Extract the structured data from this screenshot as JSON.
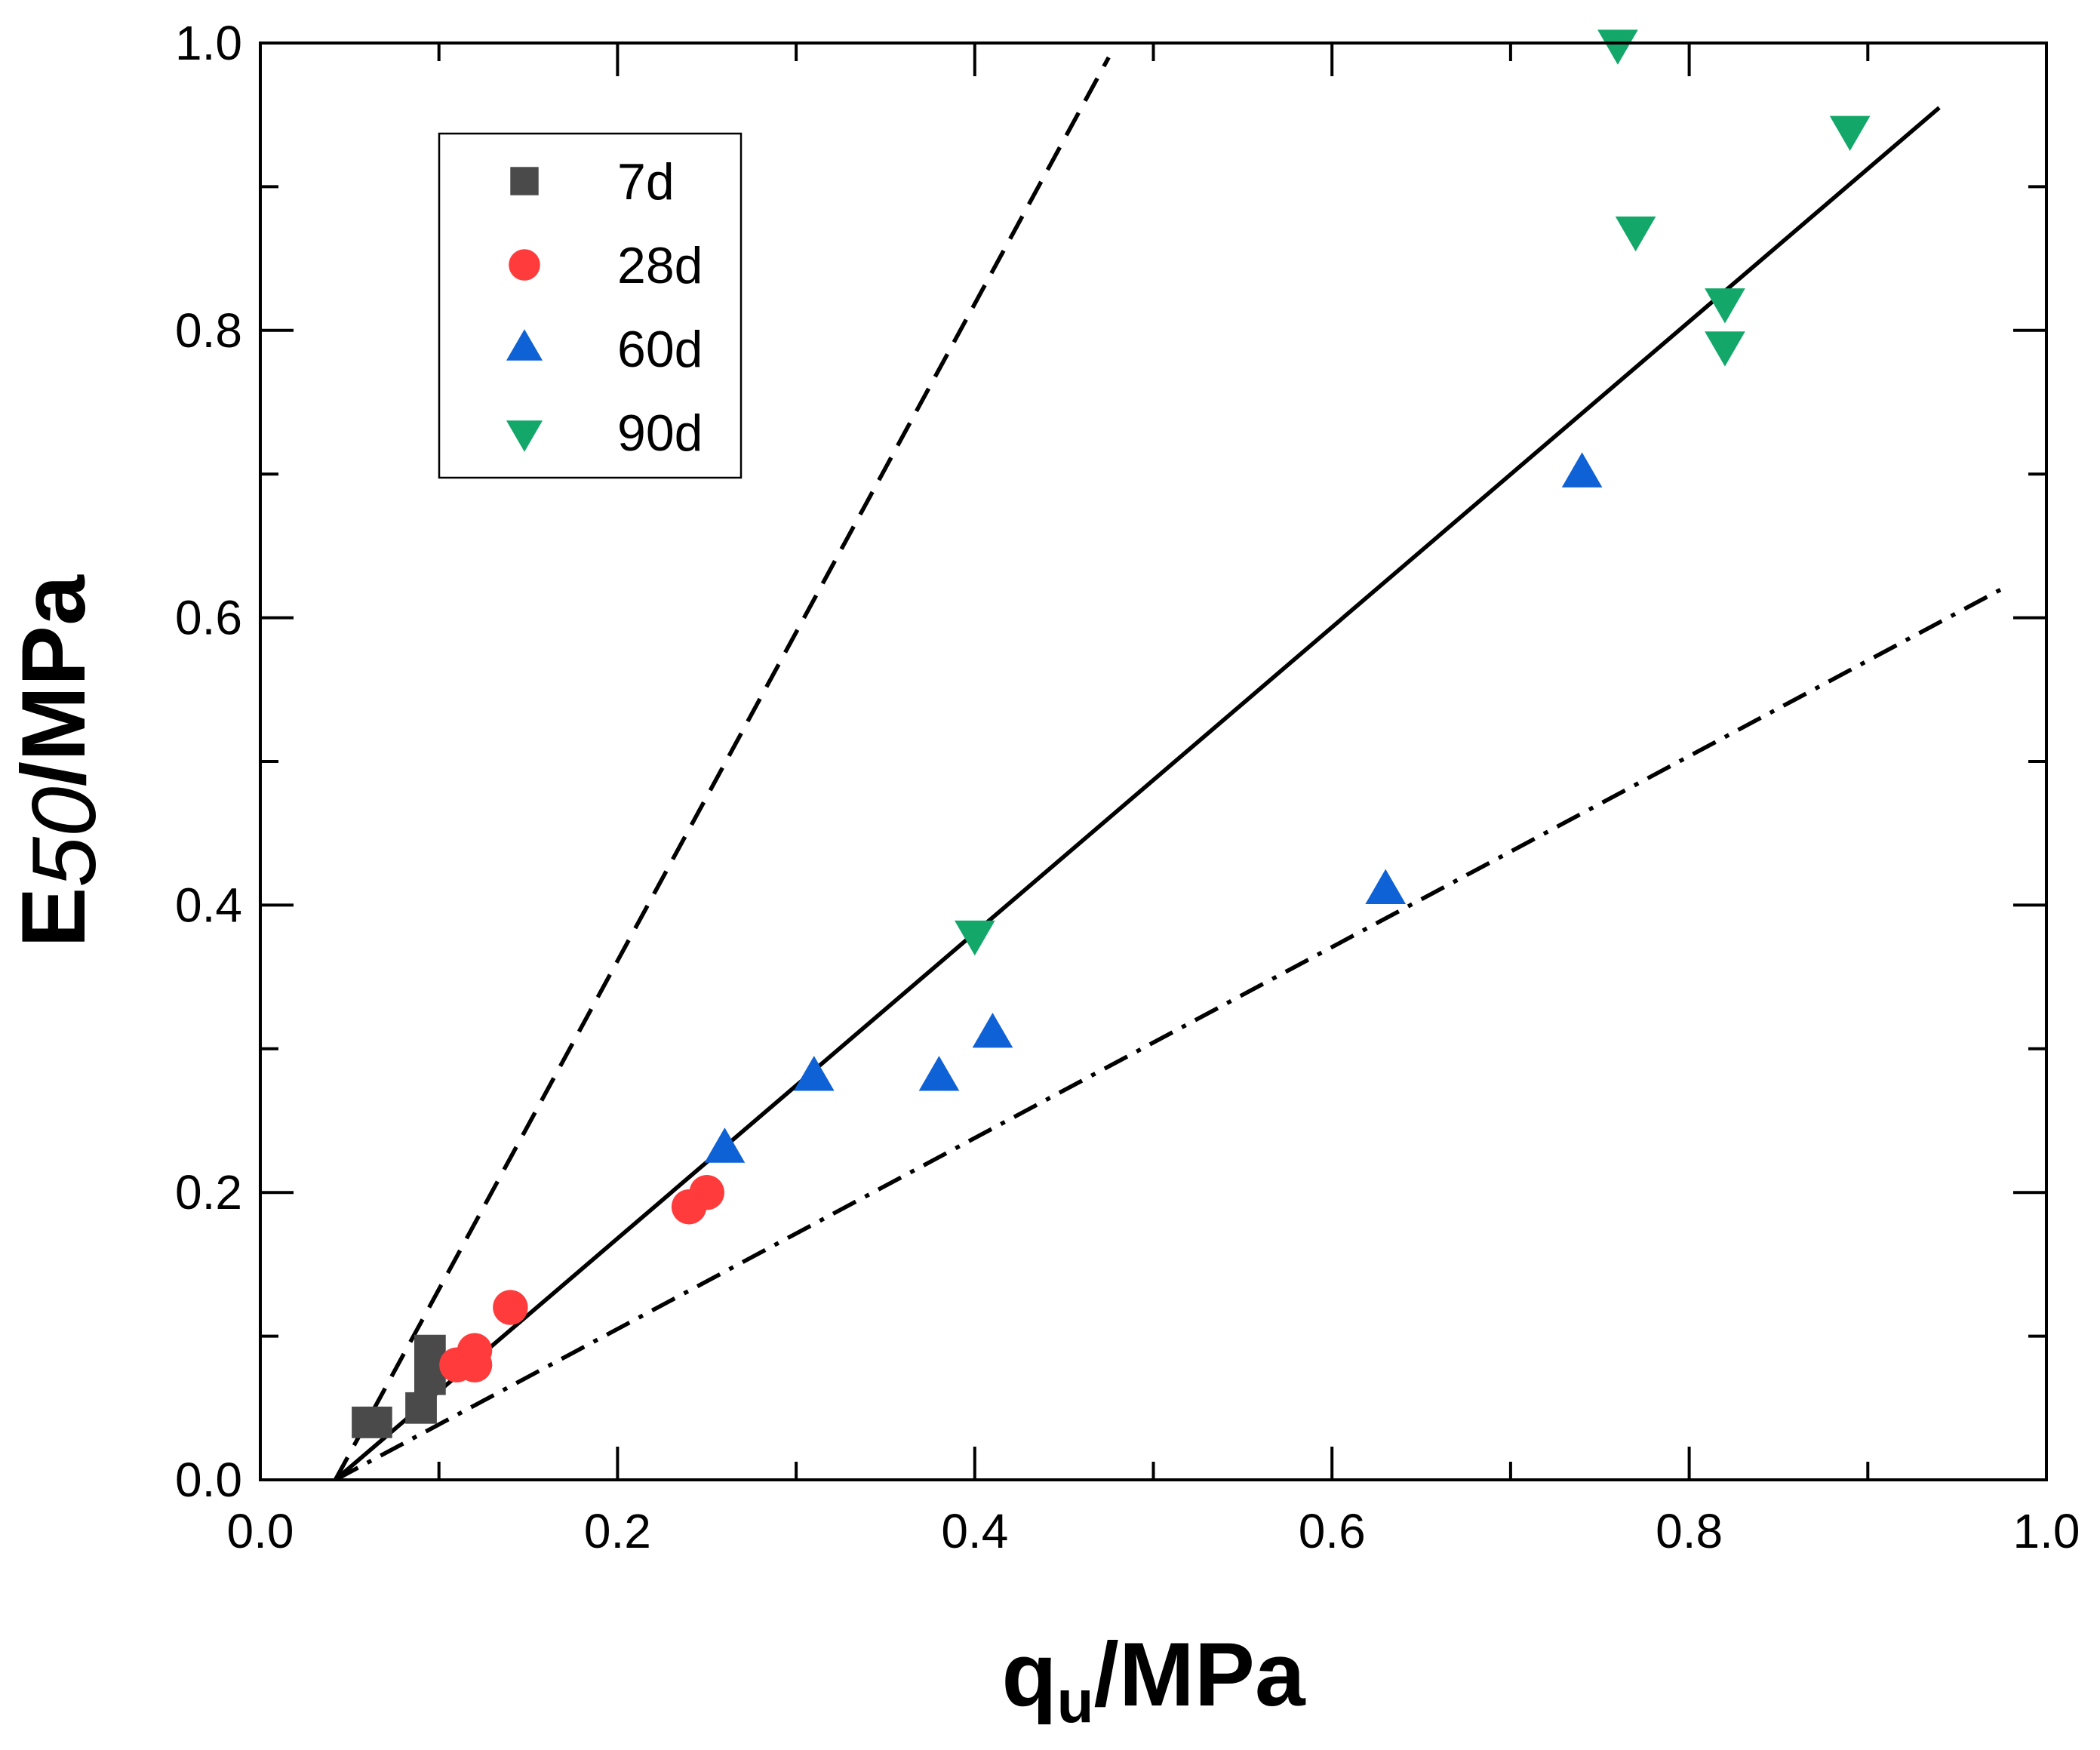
{
  "chart_data": {
    "type": "scatter",
    "title": "",
    "xlabel": {
      "main": "q",
      "sub": "u",
      "unit": "/MPa"
    },
    "ylabel": {
      "main": "E",
      "sub": "50",
      "unit": "/MPa"
    },
    "xlim": [
      0,
      1.0
    ],
    "ylim": [
      0,
      1.0
    ],
    "xticks": [
      0.0,
      0.2,
      0.4,
      0.6,
      0.8,
      1.0
    ],
    "yticks": [
      0.0,
      0.2,
      0.4,
      0.6,
      0.8,
      1.0
    ],
    "xtick_labels": [
      "0.0",
      "0.2",
      "0.4",
      "0.6",
      "0.8",
      "1.0"
    ],
    "ytick_labels": [
      "0.0",
      "0.2",
      "0.4",
      "0.6",
      "0.8",
      "1.0"
    ],
    "grid": false,
    "legend_position": "top-left",
    "series": [
      {
        "name": "7d",
        "marker": "square",
        "color": "#4a4a4a",
        "points": [
          [
            0.06,
            0.04
          ],
          [
            0.065,
            0.04
          ],
          [
            0.09,
            0.05
          ],
          [
            0.095,
            0.07
          ],
          [
            0.095,
            0.09
          ]
        ]
      },
      {
        "name": "28d",
        "marker": "circle",
        "color": "#ff3b3b",
        "points": [
          [
            0.11,
            0.08
          ],
          [
            0.12,
            0.08
          ],
          [
            0.12,
            0.09
          ],
          [
            0.14,
            0.12
          ],
          [
            0.24,
            0.19
          ],
          [
            0.25,
            0.2
          ]
        ]
      },
      {
        "name": "60d",
        "marker": "triangle-up",
        "color": "#0f62d6",
        "points": [
          [
            0.26,
            0.23
          ],
          [
            0.31,
            0.28
          ],
          [
            0.38,
            0.28
          ],
          [
            0.41,
            0.31
          ],
          [
            0.63,
            0.41
          ],
          [
            0.74,
            0.7
          ]
        ]
      },
      {
        "name": "90d",
        "marker": "triangle-down",
        "color": "#13a86a",
        "points": [
          [
            0.4,
            0.38
          ],
          [
            0.76,
            1.0
          ],
          [
            0.77,
            0.87
          ],
          [
            0.82,
            0.82
          ],
          [
            0.82,
            0.79
          ],
          [
            0.89,
            0.94
          ]
        ]
      }
    ],
    "reference_lines": [
      {
        "name": "upper-bound",
        "style": "dashed",
        "from": [
          0.042,
          0.0
        ],
        "to": [
          0.475,
          0.99
        ]
      },
      {
        "name": "fit",
        "style": "solid",
        "from": [
          0.042,
          0.0
        ],
        "to": [
          0.94,
          0.955
        ]
      },
      {
        "name": "lower-bound",
        "style": "dashdot",
        "from": [
          0.042,
          0.0
        ],
        "to": [
          0.975,
          0.62
        ]
      }
    ]
  }
}
